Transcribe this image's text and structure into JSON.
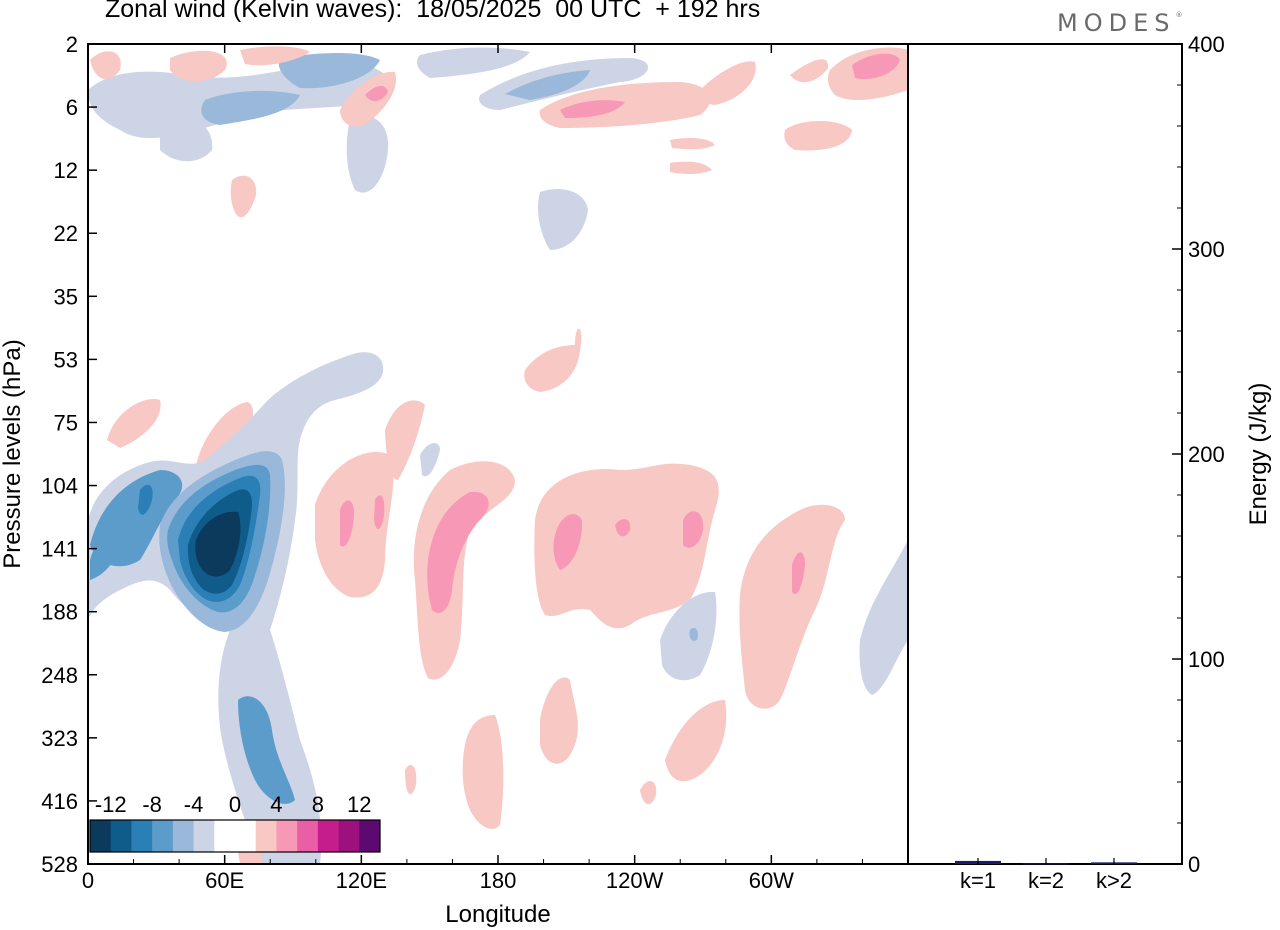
{
  "header": {
    "title": "Zonal wind (Kelvin waves):  18/05/2025  00 UTC  + 192 hrs",
    "brand": "MODES",
    "brand_mark": "®"
  },
  "chart_data": [
    {
      "type": "heatmap",
      "title": "Zonal wind (Kelvin waves):  18/05/2025  00 UTC  + 192 hrs",
      "xlabel": "Longitude",
      "ylabel": "Pressure levels (hPa)",
      "x_tick_labels": [
        "0",
        "60E",
        "120E",
        "180",
        "120W",
        "60W"
      ],
      "x_ticks_deg": [
        0,
        60,
        120,
        180,
        240,
        300
      ],
      "xlim_deg": [
        0,
        360
      ],
      "y_tick_labels": [
        "2",
        "6",
        "12",
        "22",
        "35",
        "53",
        "75",
        "104",
        "141",
        "188",
        "248",
        "323",
        "416",
        "528"
      ],
      "y_ticks_hpa": [
        2,
        6,
        12,
        22,
        35,
        53,
        75,
        104,
        141,
        188,
        248,
        323,
        416,
        528
      ],
      "color_levels": [
        -12,
        -10,
        -8,
        -6,
        -4,
        -2,
        0,
        2,
        4,
        6,
        8,
        10,
        12
      ],
      "colorbar_labels": [
        "-12",
        "-8",
        "-4",
        "0",
        "4",
        "8",
        "12"
      ],
      "colorbar_colors": [
        "#0c3a5c",
        "#0f5b8a",
        "#2a7fb6",
        "#5c9ccb",
        "#9ab8da",
        "#cdd4e6",
        "#ffffff",
        "#ffffff",
        "#f8c8c4",
        "#f799b6",
        "#ea5ea5",
        "#c51e8c",
        "#9d117f",
        "#5c0a6f"
      ],
      "features": [
        {
          "sign": "negative",
          "lon": 50,
          "p": 141,
          "peak": -12
        },
        {
          "sign": "negative",
          "lon": 20,
          "p": 120,
          "peak": -6
        },
        {
          "sign": "negative",
          "lon": 75,
          "p": 380,
          "peak": -4
        },
        {
          "sign": "positive",
          "lon": 160,
          "p": 160,
          "peak": 6
        },
        {
          "sign": "positive",
          "lon": 210,
          "p": 145,
          "peak": 6
        },
        {
          "sign": "positive",
          "lon": 265,
          "p": 135,
          "peak": 6
        },
        {
          "sign": "positive",
          "lon": 310,
          "p": 170,
          "peak": 6
        },
        {
          "sign": "positive",
          "lon": 350,
          "p": 4,
          "peak": 6
        },
        {
          "sign": "negative",
          "lon": 270,
          "p": 200,
          "peak": -4
        }
      ]
    },
    {
      "type": "bar",
      "ylabel": "Energy (J/kg)",
      "categories": [
        "k=1",
        "k=2",
        "k>2"
      ],
      "values": [
        1.5,
        0.3,
        0.8
      ],
      "ylim": [
        0,
        400
      ],
      "y_tick_labels": [
        "0",
        "100",
        "200",
        "300",
        "400"
      ],
      "y_ticks": [
        0,
        100,
        200,
        300,
        400
      ],
      "bar_color": "#1a1a6e"
    }
  ]
}
